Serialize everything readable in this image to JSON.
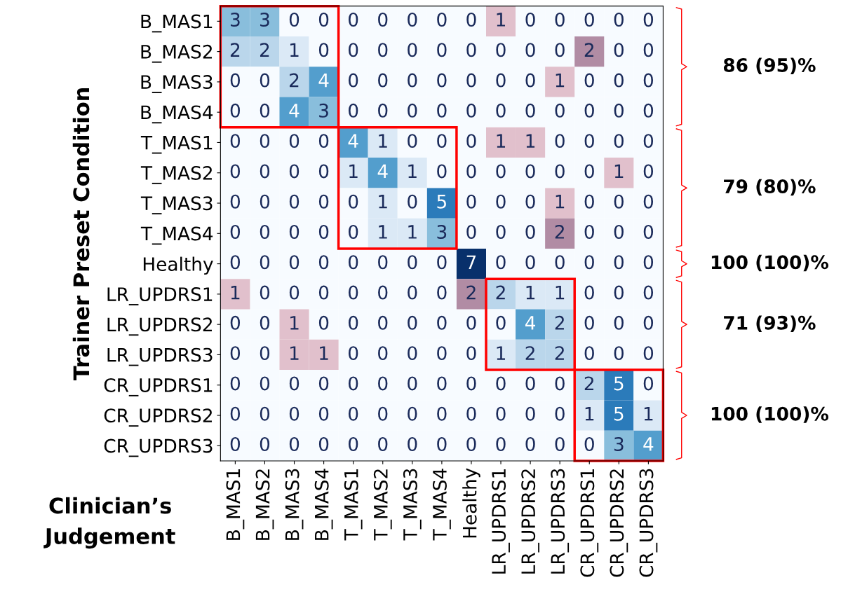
{
  "chart_data": {
    "type": "heatmap",
    "ylabel": "Trainer Preset Condition",
    "xlabel": "Clinician’s\nJudgement",
    "categories": [
      "B_MAS1",
      "B_MAS2",
      "B_MAS3",
      "B_MAS4",
      "T_MAS1",
      "T_MAS2",
      "T_MAS3",
      "T_MAS4",
      "Healthy",
      "LR_UPDRS1",
      "LR_UPDRS2",
      "LR_UPDRS3",
      "CR_UPDRS1",
      "CR_UPDRS2",
      "CR_UPDRS3"
    ],
    "y_categories": [
      "B_MAS1",
      "B_MAS2",
      "B_MAS3",
      "B_MAS4",
      "T_MAS1",
      "T_MAS2",
      "T_MAS3",
      "T_MAS4",
      "Healthy",
      "LR_UPDRS1",
      "LR_UPDRS2",
      "LR_UPDRS3",
      "CR_UPDRS1",
      "CR_UPDRS2",
      "CR_UPDRS3"
    ],
    "cells": [
      [
        3,
        3,
        0,
        0,
        0,
        0,
        0,
        0,
        0,
        1,
        0,
        0,
        0,
        0,
        0
      ],
      [
        2,
        2,
        1,
        0,
        0,
        0,
        0,
        0,
        0,
        0,
        0,
        0,
        2,
        0,
        0
      ],
      [
        0,
        0,
        2,
        4,
        0,
        0,
        0,
        0,
        0,
        0,
        0,
        1,
        0,
        0,
        0
      ],
      [
        0,
        0,
        4,
        3,
        0,
        0,
        0,
        0,
        0,
        0,
        0,
        0,
        0,
        0,
        0
      ],
      [
        0,
        0,
        0,
        0,
        4,
        1,
        0,
        0,
        0,
        1,
        1,
        0,
        0,
        0,
        0
      ],
      [
        0,
        0,
        0,
        0,
        1,
        4,
        1,
        0,
        0,
        0,
        0,
        0,
        0,
        1,
        0
      ],
      [
        0,
        0,
        0,
        0,
        0,
        1,
        0,
        5,
        0,
        0,
        0,
        1,
        0,
        0,
        0
      ],
      [
        0,
        0,
        0,
        0,
        0,
        1,
        1,
        3,
        0,
        0,
        0,
        2,
        0,
        0,
        0
      ],
      [
        0,
        0,
        0,
        0,
        0,
        0,
        0,
        0,
        7,
        0,
        0,
        0,
        0,
        0,
        0
      ],
      [
        1,
        0,
        0,
        0,
        0,
        0,
        0,
        0,
        2,
        2,
        1,
        1,
        0,
        0,
        0
      ],
      [
        0,
        0,
        1,
        0,
        0,
        0,
        0,
        0,
        0,
        0,
        4,
        2,
        0,
        0,
        0
      ],
      [
        0,
        0,
        1,
        1,
        0,
        0,
        0,
        0,
        0,
        1,
        2,
        2,
        0,
        0,
        0
      ],
      [
        0,
        0,
        0,
        0,
        0,
        0,
        0,
        0,
        0,
        0,
        0,
        0,
        2,
        5,
        0
      ],
      [
        0,
        0,
        0,
        0,
        0,
        0,
        0,
        0,
        0,
        0,
        0,
        0,
        1,
        5,
        1
      ],
      [
        0,
        0,
        0,
        0,
        0,
        0,
        0,
        0,
        0,
        0,
        0,
        0,
        0,
        3,
        4
      ]
    ],
    "data_labels": true,
    "annotations": [
      "86 (95)%",
      "79 (80)%",
      "100 (100)%",
      "71 (93)%",
      "100 (100)%"
    ]
  }
}
